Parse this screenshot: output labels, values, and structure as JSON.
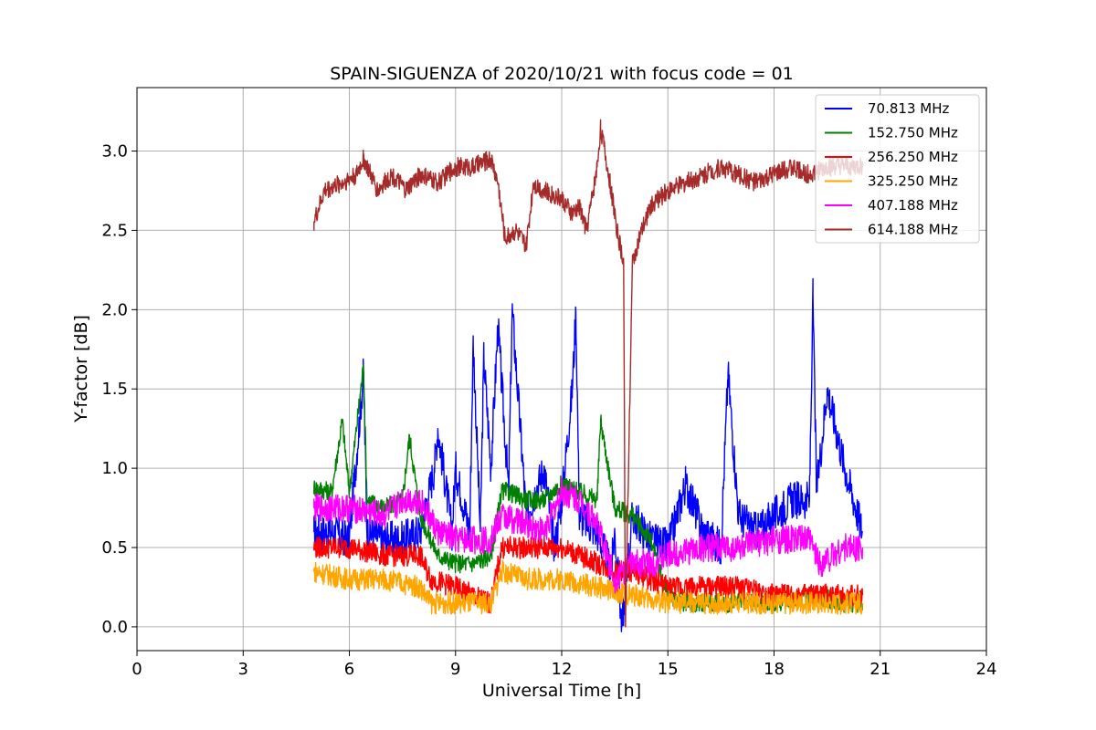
{
  "chart_data": {
    "type": "line",
    "title": "SPAIN-SIGUENZA of 2020/10/21 with focus code = 01",
    "xlabel": "Universal Time [h]",
    "ylabel": "Y-factor [dB]",
    "xlim": [
      0,
      24
    ],
    "ylim": [
      -0.15,
      3.4
    ],
    "grid": true,
    "legend_position": "top-right",
    "x_ticks": [
      0,
      3,
      6,
      9,
      12,
      15,
      18,
      21,
      24
    ],
    "x_tick_labels": [
      "0",
      "3",
      "6",
      "9",
      "12",
      "15",
      "18",
      "21",
      "24"
    ],
    "y_ticks": [
      0.0,
      0.5,
      1.0,
      1.5,
      2.0,
      2.5,
      3.0
    ],
    "y_tick_labels": [
      "0.0",
      "0.5",
      "1.0",
      "1.5",
      "2.0",
      "2.5",
      "3.0"
    ],
    "series": [
      {
        "name": "70.813 MHz",
        "legend_label": " 70.813 MHz",
        "color": "#0000ff",
        "x": [
          5.0,
          5.5,
          6.0,
          6.4,
          6.5,
          7.0,
          7.5,
          8.0,
          8.4,
          8.5,
          8.9,
          9.0,
          9.4,
          9.5,
          9.7,
          9.8,
          10.0,
          10.2,
          10.5,
          10.6,
          11.0,
          11.5,
          11.8,
          12.0,
          12.3,
          12.4,
          12.5,
          13.0,
          13.4,
          13.5,
          13.7,
          14.0,
          14.5,
          15.0,
          15.5,
          16.0,
          16.5,
          16.7,
          17.0,
          17.5,
          18.0,
          18.5,
          19.0,
          19.1,
          19.2,
          19.5,
          20.0,
          20.5
        ],
        "y": [
          0.6,
          0.6,
          0.55,
          1.6,
          0.6,
          0.55,
          0.55,
          0.6,
          1.0,
          1.25,
          0.6,
          1.0,
          0.6,
          1.8,
          0.6,
          1.7,
          1.0,
          1.9,
          0.85,
          2.0,
          0.7,
          1.0,
          0.5,
          0.8,
          1.5,
          1.99,
          0.7,
          0.6,
          0.35,
          0.6,
          0.0,
          0.7,
          0.55,
          0.5,
          0.9,
          0.6,
          0.5,
          1.6,
          0.7,
          0.6,
          0.7,
          0.8,
          0.8,
          2.08,
          0.85,
          1.5,
          1.0,
          0.6
        ]
      },
      {
        "name": "152.750 MHz",
        "legend_label": "152.750 MHz",
        "color": "#008000",
        "x": [
          5.0,
          5.5,
          5.8,
          6.0,
          6.4,
          6.5,
          7.0,
          7.5,
          7.7,
          8.0,
          8.5,
          9.0,
          9.5,
          10.0,
          10.3,
          10.5,
          11.0,
          11.5,
          12.0,
          12.5,
          13.0,
          13.1,
          13.5,
          14.0,
          14.5,
          15.0,
          15.5,
          16.0,
          17.0,
          18.0,
          19.0,
          20.0,
          20.5
        ],
        "y": [
          0.88,
          0.85,
          1.3,
          0.85,
          1.65,
          0.8,
          0.75,
          0.8,
          1.2,
          0.7,
          0.45,
          0.4,
          0.4,
          0.45,
          0.85,
          0.85,
          0.8,
          0.8,
          0.9,
          0.85,
          0.8,
          1.3,
          0.75,
          0.7,
          0.55,
          0.2,
          0.15,
          0.15,
          0.15,
          0.15,
          0.2,
          0.15,
          0.15
        ]
      },
      {
        "name": "256.250 MHz",
        "legend_label": "256.250 MHz",
        "color": "#ff0000",
        "x": [
          5.0,
          6.0,
          7.0,
          8.0,
          8.3,
          9.0,
          10.0,
          10.3,
          11.0,
          12.0,
          13.0,
          13.5,
          14.0,
          15.0,
          16.0,
          17.0,
          18.0,
          19.0,
          20.0,
          20.5
        ],
        "y": [
          0.5,
          0.5,
          0.45,
          0.45,
          0.3,
          0.25,
          0.15,
          0.5,
          0.5,
          0.5,
          0.4,
          0.35,
          0.35,
          0.25,
          0.25,
          0.25,
          0.2,
          0.2,
          0.2,
          0.2
        ]
      },
      {
        "name": "325.250 MHz",
        "legend_label": "325.250 MHz",
        "color": "#ffa500",
        "x": [
          5.0,
          6.0,
          7.0,
          8.0,
          8.3,
          9.0,
          10.0,
          10.3,
          11.0,
          12.0,
          13.0,
          14.0,
          15.0,
          16.0,
          17.0,
          18.0,
          19.0,
          20.0,
          20.5
        ],
        "y": [
          0.35,
          0.3,
          0.3,
          0.25,
          0.15,
          0.15,
          0.15,
          0.35,
          0.3,
          0.3,
          0.25,
          0.2,
          0.15,
          0.15,
          0.15,
          0.15,
          0.15,
          0.15,
          0.15
        ]
      },
      {
        "name": "407.188 MHz",
        "legend_label": "407.188 MHz",
        "color": "#ff00ff",
        "x": [
          5.0,
          6.0,
          7.0,
          7.5,
          8.0,
          8.5,
          9.0,
          10.0,
          10.3,
          11.0,
          11.5,
          12.0,
          12.5,
          13.0,
          13.5,
          14.0,
          14.5,
          15.0,
          16.0,
          17.0,
          18.0,
          19.0,
          19.3,
          20.0,
          20.5
        ],
        "y": [
          0.75,
          0.75,
          0.7,
          0.8,
          0.8,
          0.6,
          0.55,
          0.55,
          0.7,
          0.65,
          0.6,
          0.85,
          0.8,
          0.65,
          0.3,
          0.4,
          0.4,
          0.45,
          0.5,
          0.5,
          0.55,
          0.55,
          0.4,
          0.5,
          0.5
        ]
      },
      {
        "name": "614.188 MHz",
        "legend_label": "614.188 MHz",
        "color": "#a52a2a",
        "x": [
          5.0,
          5.3,
          5.8,
          6.2,
          6.4,
          6.8,
          7.2,
          7.6,
          8.0,
          8.5,
          9.0,
          9.5,
          10.0,
          10.2,
          10.4,
          10.7,
          11.0,
          11.2,
          11.5,
          12.0,
          12.3,
          12.5,
          12.7,
          13.0,
          13.1,
          13.4,
          13.6,
          13.75,
          13.8,
          14.0,
          14.2,
          14.5,
          15.0,
          15.5,
          16.0,
          16.5,
          17.0,
          17.5,
          18.0,
          18.5,
          19.0,
          19.5,
          20.0,
          20.5
        ],
        "y": [
          2.55,
          2.75,
          2.8,
          2.85,
          2.95,
          2.75,
          2.85,
          2.75,
          2.85,
          2.8,
          2.9,
          2.9,
          2.95,
          2.8,
          2.45,
          2.5,
          2.4,
          2.8,
          2.75,
          2.7,
          2.6,
          2.65,
          2.5,
          2.9,
          3.15,
          2.75,
          2.45,
          2.3,
          0.0,
          2.3,
          2.45,
          2.65,
          2.75,
          2.8,
          2.85,
          2.9,
          2.85,
          2.8,
          2.85,
          2.9,
          2.85,
          2.9,
          2.9,
          2.9
        ]
      }
    ]
  }
}
